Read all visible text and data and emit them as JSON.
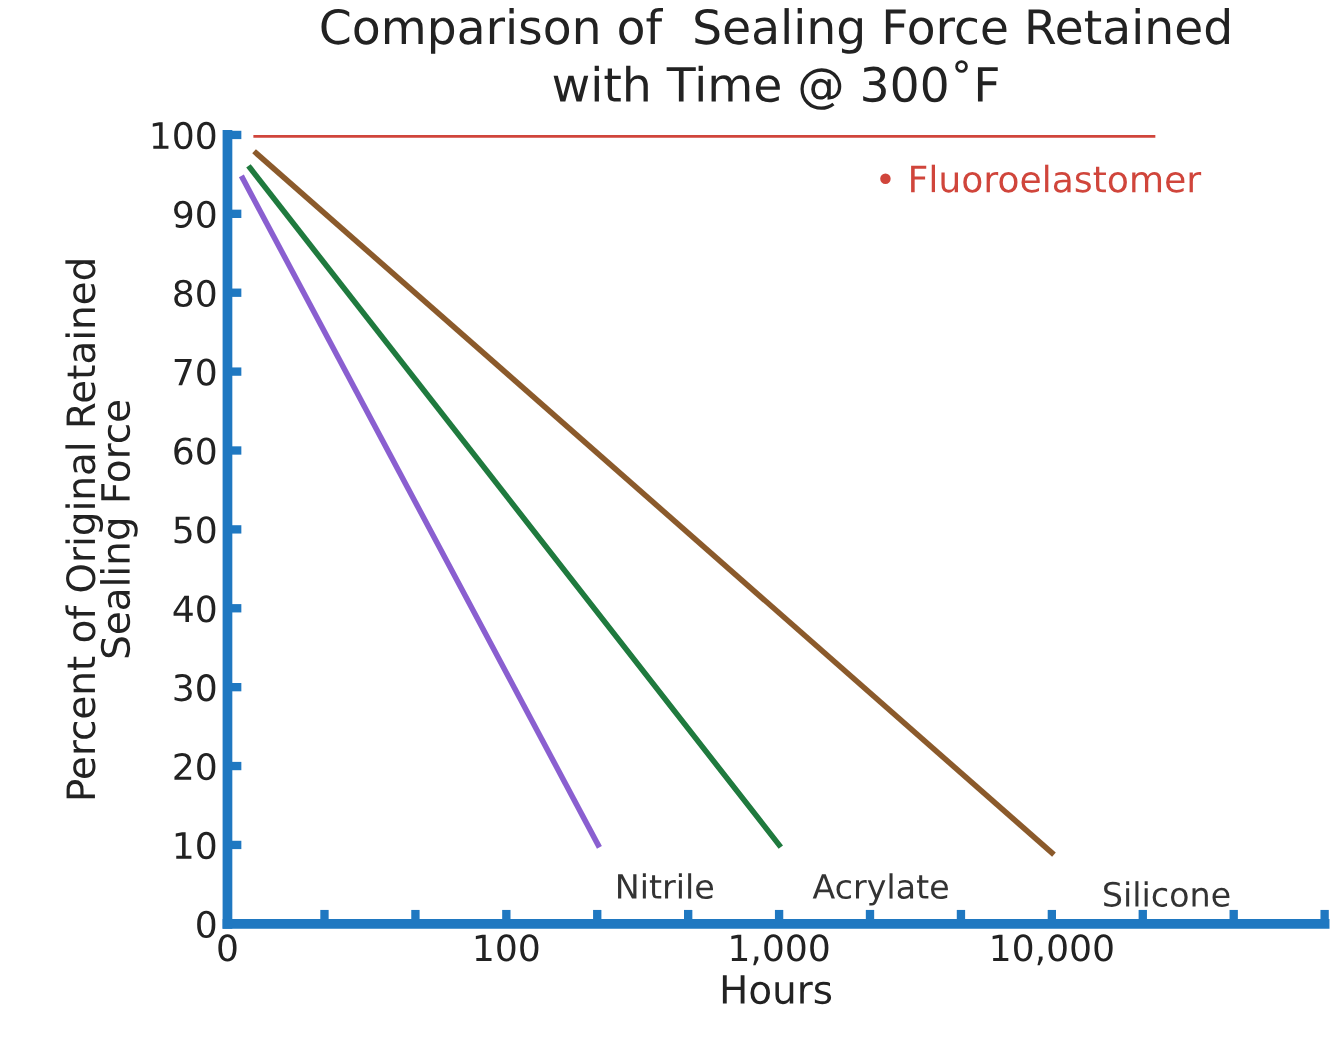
{
  "chart_data": {
    "type": "line",
    "title": "Comparison of  Sealing Force Retained\nwith Time @ 300˚F",
    "xlabel": "Hours",
    "ylabel": "Percent of Original Retained\nSealing Force",
    "log": "x",
    "xlim": [
      0,
      100000
    ],
    "xticks": [
      0,
      {
        "value": 21.54,
        "label": null
      },
      {
        "value": 46.42,
        "label": null
      },
      100,
      {
        "value": 215.4,
        "label": null
      },
      {
        "value": 464.2,
        "label": null
      },
      {
        "value": 1000,
        "label": "1,000"
      },
      {
        "value": 2154,
        "label": null
      },
      {
        "value": 4642,
        "label": null
      },
      {
        "value": 10000,
        "label": "10,000"
      },
      {
        "value": 21544,
        "label": null
      },
      {
        "value": 46416,
        "label": null
      },
      {
        "value": 100000,
        "label": null
      }
    ],
    "ylim": [
      0,
      100
    ],
    "yticks": [
      0,
      10,
      20,
      30,
      40,
      50,
      60,
      70,
      80,
      90,
      100
    ],
    "grid": false,
    "legend": false,
    "marker": "none",
    "line_style": "solid",
    "series": [
      {
        "name": "Nitrile",
        "color": "#8a5fd0",
        "x": [
          10.8,
          217
        ],
        "values": [
          94.5,
          10
        ]
      },
      {
        "name": "Acrylate",
        "color": "#1f7a3e",
        "x": [
          11.5,
          1000
        ],
        "values": [
          95.8,
          10
        ]
      },
      {
        "name": "Silicone",
        "color": "#8b5a2b",
        "x": [
          12.1,
          10000
        ],
        "values": [
          97.7,
          9
        ]
      },
      {
        "name": "• Fluoroelastomer",
        "color": "#d0453b",
        "x": [
          12.1,
          23400
        ],
        "values": [
          100,
          100
        ]
      }
    ]
  }
}
